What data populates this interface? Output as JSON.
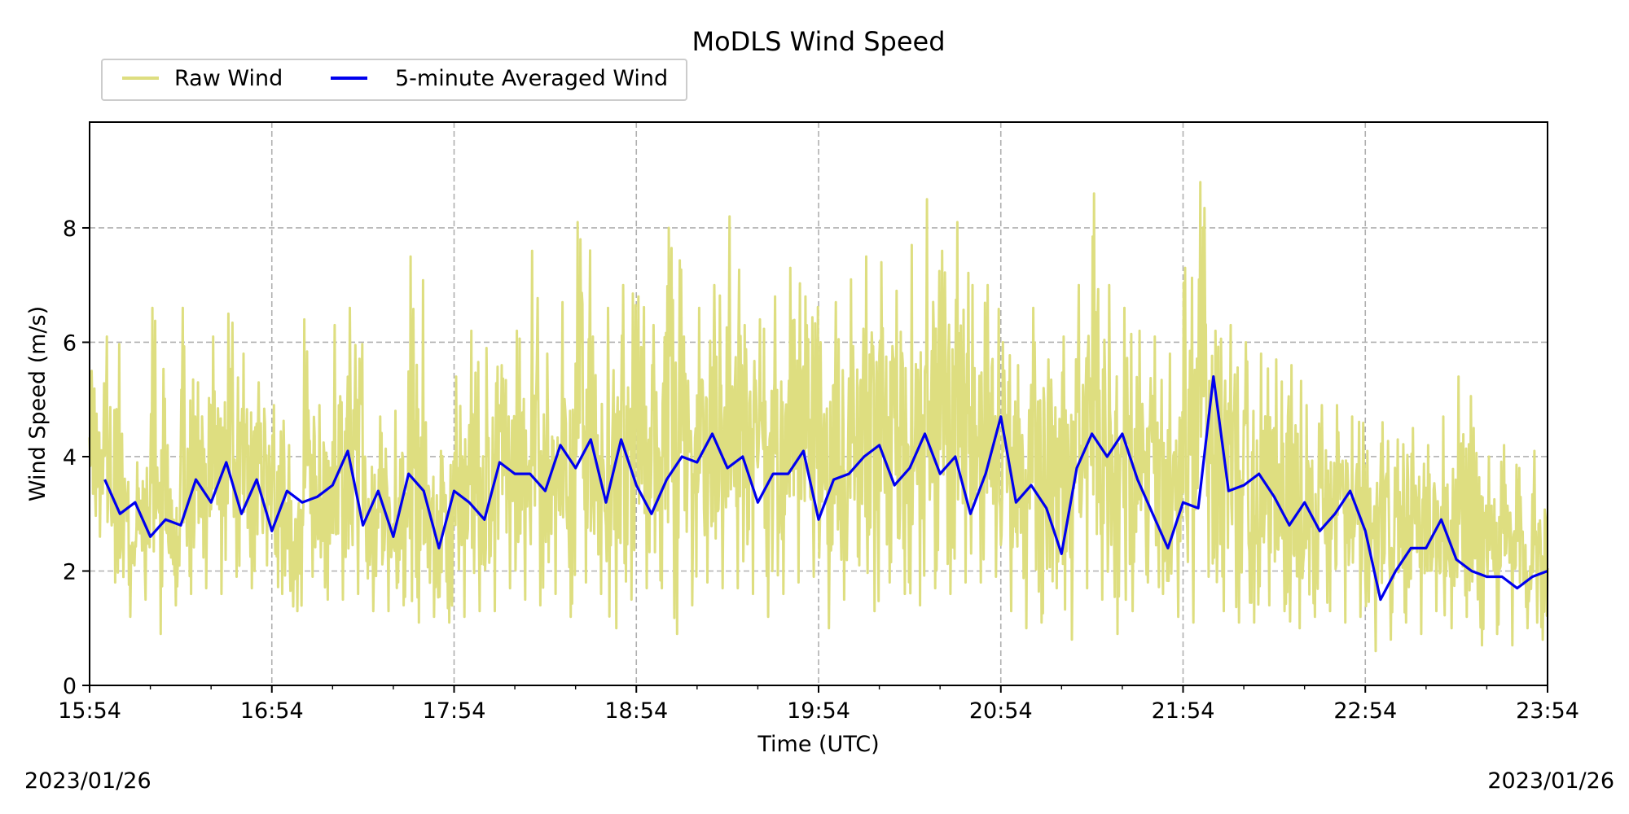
{
  "chart_data": {
    "type": "line",
    "title": "MoDLS Wind Speed",
    "xlabel": "Time (UTC)",
    "ylabel": "Wind Speed (m/s)",
    "date_left": "2023/01/26",
    "date_right": "2023/01/26",
    "x_unit": "minutes",
    "x_ticks": [
      "15:54",
      "16:54",
      "17:54",
      "18:54",
      "19:54",
      "20:54",
      "21:54",
      "22:54",
      "23:54"
    ],
    "xlim": [
      "15:54",
      "23:54"
    ],
    "y_ticks": [
      0,
      2,
      4,
      6,
      8
    ],
    "ylim": [
      0,
      9.85
    ],
    "grid": true,
    "legend": {
      "placement": "top-left",
      "columns": 2
    },
    "colors": {
      "raw": "#dede80",
      "avg": "#0000ee",
      "grid": "#b0b0b0"
    },
    "series": [
      {
        "name": "Raw Wind",
        "x": [
          "15:54",
          "15:59",
          "16:04",
          "16:09",
          "16:14",
          "16:19",
          "16:24",
          "16:29",
          "16:34",
          "16:39",
          "16:44",
          "16:49",
          "16:54",
          "16:59",
          "17:04",
          "17:09",
          "17:14",
          "17:19",
          "17:24",
          "17:29",
          "17:34",
          "17:39",
          "17:44",
          "17:49",
          "17:54",
          "17:59",
          "18:04",
          "18:09",
          "18:14",
          "18:19",
          "18:24",
          "18:29",
          "18:34",
          "18:39",
          "18:44",
          "18:49",
          "18:54",
          "18:59",
          "19:04",
          "19:09",
          "19:14",
          "19:19",
          "19:24",
          "19:29",
          "19:34",
          "19:39",
          "19:44",
          "19:49",
          "19:54",
          "19:59",
          "20:04",
          "20:09",
          "20:14",
          "20:19",
          "20:24",
          "20:29",
          "20:34",
          "20:39",
          "20:44",
          "20:49",
          "20:54",
          "20:59",
          "21:04",
          "21:09",
          "21:14",
          "21:19",
          "21:24",
          "21:29",
          "21:34",
          "21:39",
          "21:44",
          "21:49",
          "21:54",
          "21:59",
          "22:04",
          "22:09",
          "22:14",
          "22:19",
          "22:24",
          "22:29",
          "22:34",
          "22:39",
          "22:44",
          "22:49",
          "22:54",
          "22:59",
          "23:04",
          "23:09",
          "23:14",
          "23:19",
          "23:24",
          "23:29",
          "23:34",
          "23:39",
          "23:44",
          "23:49",
          "23:54"
        ],
        "lo": [
          2.6,
          1.8,
          1.2,
          1.5,
          0.9,
          1.4,
          1.6,
          1.7,
          1.6,
          1.9,
          1.7,
          2.1,
          1.6,
          1.3,
          1.9,
          1.5,
          1.5,
          1.6,
          1.3,
          1.3,
          1.4,
          1.1,
          1.2,
          1.1,
          1.2,
          1.3,
          1.3,
          1.7,
          1.5,
          1.4,
          1.6,
          1.2,
          1.8,
          1.6,
          1.0,
          1.5,
          1.7,
          1.7,
          0.9,
          1.4,
          1.8,
          1.7,
          1.7,
          1.6,
          1.2,
          1.6,
          1.8,
          1.9,
          1.0,
          1.5,
          2.1,
          1.3,
          1.8,
          1.6,
          1.4,
          1.7,
          1.6,
          1.8,
          1.8,
          1.9,
          1.3,
          1.0,
          1.1,
          1.7,
          0.8,
          1.7,
          1.5,
          0.9,
          1.3,
          1.8,
          1.6,
          1.2,
          1.1,
          1.9,
          1.3,
          1.1,
          1.1,
          1.4,
          1.3,
          1.0,
          1.2,
          1.3,
          1.1,
          1.2,
          0.6,
          0.8,
          1.1,
          0.9,
          1.3,
          1.0,
          1.2,
          0.7,
          0.9,
          0.7,
          1.0,
          0.8,
          0.9
        ],
        "hi": [
          5.5,
          6.1,
          4.4,
          3.9,
          6.6,
          4.2,
          6.6,
          5.3,
          6.1,
          6.5,
          5.8,
          5.3,
          4.9,
          4.2,
          6.4,
          4.9,
          6.3,
          6.6,
          4.0,
          4.7,
          4.8,
          7.5,
          4.6,
          4.1,
          5.4,
          6.2,
          5.9,
          5.6,
          6.2,
          7.6,
          5.8,
          6.7,
          8.1,
          6.1,
          6.6,
          7.0,
          6.8,
          6.3,
          8.0,
          6.1,
          6.6,
          7.0,
          8.2,
          6.3,
          6.4,
          6.8,
          7.3,
          6.8,
          6.0,
          6.7,
          7.1,
          7.5,
          7.4,
          6.9,
          7.7,
          8.5,
          7.6,
          8.1,
          7.0,
          7.0,
          6.0,
          5.6,
          6.6,
          5.7,
          6.1,
          7.0,
          8.6,
          7.0,
          6.6,
          6.2,
          6.1,
          5.8,
          7.3,
          8.8,
          6.2,
          6.3,
          6.0,
          5.8,
          5.7,
          5.6,
          4.9,
          4.9,
          4.9,
          4.7,
          4.1,
          4.6,
          4.3,
          4.5,
          4.2,
          4.7,
          5.4,
          4.5,
          4.0,
          4.2,
          3.8,
          4.1,
          3.2
        ]
      },
      {
        "name": "5-minute Averaged Wind",
        "x": [
          "15:59",
          "16:04",
          "16:09",
          "16:14",
          "16:19",
          "16:24",
          "16:29",
          "16:34",
          "16:39",
          "16:44",
          "16:49",
          "16:54",
          "16:59",
          "17:04",
          "17:09",
          "17:14",
          "17:19",
          "17:24",
          "17:29",
          "17:34",
          "17:39",
          "17:44",
          "17:49",
          "17:54",
          "17:59",
          "18:04",
          "18:09",
          "18:14",
          "18:19",
          "18:24",
          "18:29",
          "18:34",
          "18:39",
          "18:44",
          "18:49",
          "18:54",
          "18:59",
          "19:04",
          "19:09",
          "19:14",
          "19:19",
          "19:24",
          "19:29",
          "19:34",
          "19:39",
          "19:44",
          "19:49",
          "19:54",
          "19:59",
          "20:04",
          "20:09",
          "20:14",
          "20:19",
          "20:24",
          "20:29",
          "20:34",
          "20:39",
          "20:44",
          "20:49",
          "20:54",
          "20:59",
          "21:04",
          "21:09",
          "21:14",
          "21:19",
          "21:24",
          "21:29",
          "21:34",
          "21:39",
          "21:44",
          "21:49",
          "21:54",
          "21:59",
          "22:04",
          "22:09",
          "22:14",
          "22:19",
          "22:24",
          "22:29",
          "22:34",
          "22:39",
          "22:44",
          "22:49",
          "22:54",
          "22:59",
          "23:04",
          "23:09",
          "23:14",
          "23:19",
          "23:24",
          "23:29",
          "23:34",
          "23:39",
          "23:44",
          "23:49",
          "23:54"
        ],
        "values": [
          3.6,
          3.0,
          3.2,
          2.6,
          2.9,
          2.8,
          3.6,
          3.2,
          3.9,
          3.0,
          3.6,
          2.7,
          3.4,
          3.2,
          3.3,
          3.5,
          4.1,
          2.8,
          3.4,
          2.6,
          3.7,
          3.4,
          2.4,
          3.4,
          3.2,
          2.9,
          3.9,
          3.7,
          3.7,
          3.4,
          4.2,
          3.8,
          4.3,
          3.2,
          4.3,
          3.5,
          3.0,
          3.6,
          4.0,
          3.9,
          4.4,
          3.8,
          4.0,
          3.2,
          3.7,
          3.7,
          4.1,
          2.9,
          3.6,
          3.7,
          4.0,
          4.2,
          3.5,
          3.8,
          4.4,
          3.7,
          4.0,
          3.0,
          3.7,
          4.7,
          3.2,
          3.5,
          3.1,
          2.3,
          3.8,
          4.4,
          4.0,
          4.4,
          3.6,
          3.0,
          2.4,
          3.2,
          3.1,
          5.4,
          3.4,
          3.5,
          3.7,
          3.3,
          2.8,
          3.2,
          2.7,
          3.0,
          3.4,
          2.7,
          1.5,
          2.0,
          2.4,
          2.4,
          2.9,
          2.2,
          2.0,
          1.9,
          1.9,
          1.7,
          1.9,
          2.0
        ]
      }
    ]
  }
}
